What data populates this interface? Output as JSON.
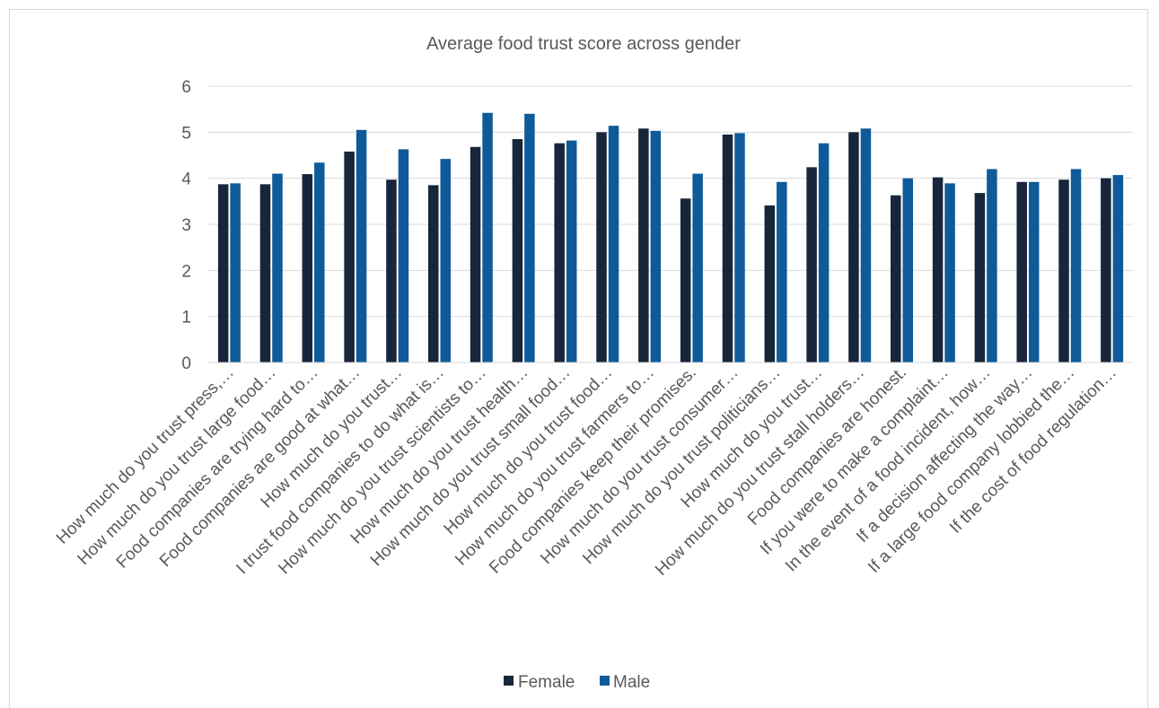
{
  "chart_data": {
    "type": "bar",
    "title": "Average food trust score across gender",
    "xlabel": "",
    "ylabel": "",
    "ylim": [
      0,
      6
    ],
    "yticks": [
      0,
      1,
      2,
      3,
      4,
      5,
      6
    ],
    "grid": true,
    "legend_position": "bottom",
    "categories": [
      "How much do you trust press,…",
      "How much do you trust large food…",
      "Food companies are trying hard to…",
      "Food companies are good at what…",
      "How much do you trust…",
      "I trust food companies to do what is…",
      "How much do you trust scientists to…",
      "How much do you trust health…",
      "How much do you trust small food…",
      "How much do you trust food…",
      "How much do you trust farmers to…",
      "Food companies keep their promises.",
      "How much do you trust consumer…",
      "How much do you trust politicians…",
      "How much do you trust…",
      "How much do you trust stall holders…",
      "Food companies are honest.",
      "If you were to make a complaint…",
      "In the event of a food incident, how…",
      "If a decision affecting the way…",
      "If a large food company lobbied the…",
      "If the cost of food regulation…"
    ],
    "series": [
      {
        "name": "Female",
        "color": "#17263a",
        "values": [
          3.87,
          3.87,
          4.09,
          4.58,
          3.97,
          3.85,
          4.68,
          4.85,
          4.76,
          5.0,
          5.08,
          3.56,
          4.95,
          3.41,
          4.24,
          5.0,
          3.63,
          4.02,
          3.68,
          3.92,
          3.97,
          4.0
        ]
      },
      {
        "name": "Male",
        "color": "#0f5b99",
        "values": [
          3.89,
          4.1,
          4.34,
          5.05,
          4.63,
          4.42,
          5.42,
          5.4,
          4.82,
          5.14,
          5.03,
          4.1,
          4.98,
          3.92,
          4.76,
          5.08,
          4.0,
          3.89,
          4.2,
          3.92,
          4.2,
          4.07
        ]
      }
    ]
  }
}
